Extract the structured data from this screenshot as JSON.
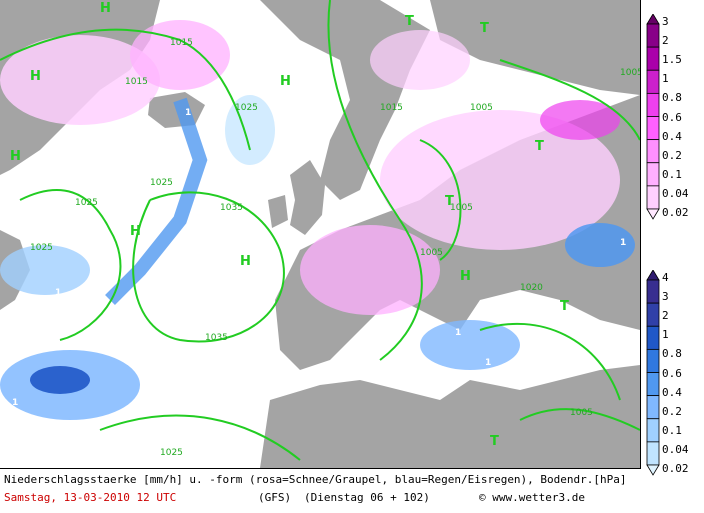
{
  "map": {
    "isobar_labels": [
      "1015",
      "1015",
      "1015",
      "1025",
      "1025",
      "1035",
      "1025",
      "1035",
      "1005",
      "1005",
      "1005",
      "1020",
      "1025",
      "1025",
      "1005",
      "1005"
    ],
    "pressure_high_marker": "H",
    "pressure_low_marker": "T",
    "precip_intensity_marker": "1"
  },
  "legend_snow": {
    "colors": [
      "#ffe8ff",
      "#ffd0ff",
      "#ffb0ff",
      "#ff90ff",
      "#ff60ff",
      "#ee40ee",
      "#cc20cc",
      "#aa00aa",
      "#880088",
      "#660066"
    ],
    "labels": [
      "3",
      "2",
      "1.5",
      "1",
      "0.8",
      "0.6",
      "0.4",
      "0.2",
      "0.1",
      "0.04",
      "0.02"
    ]
  },
  "legend_rain": {
    "colors": [
      "#e0f4ff",
      "#c0e4ff",
      "#a0d0ff",
      "#80b8ff",
      "#5098f0",
      "#3078e0",
      "#2058c8",
      "#3040a8",
      "#382e90",
      "#301c70"
    ],
    "labels": [
      "4",
      "3",
      "2",
      "1",
      "0.8",
      "0.6",
      "0.4",
      "0.2",
      "0.1",
      "0.04",
      "0.02"
    ]
  },
  "caption": "Niederschlagsstaerke [mm/h] u. -form (rosa=Schnee/Graupel, blau=Regen/Eisregen), Bodendr.[hPa]",
  "footer": {
    "date": "Samstag, 13-03-2010  12 UTC",
    "model": "(GFS)",
    "run": "(Dienstag 06 + 102)",
    "copyright": "© www.wetter3.de"
  },
  "colors": {
    "sea": "#ffffff",
    "land": "#a4a4a4",
    "isobar": "#22cc22",
    "footer_date": "#cc0000",
    "footer_text": "#000000"
  }
}
